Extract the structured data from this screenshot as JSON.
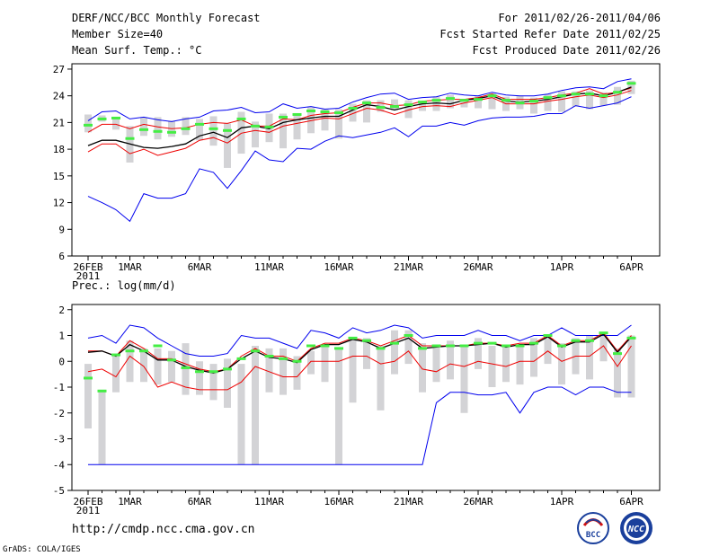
{
  "header": {
    "title": "DERF/NCC/BCC Monthly Forecast",
    "member_size": "Member Size=40",
    "variable": "Mean Surf. Temp.: °C",
    "period": "For 2011/02/26-2011/04/06",
    "started": "Fcst Started Refer Date 2011/02/25",
    "produced": "Fcst Produced Date 2011/02/26"
  },
  "footer": {
    "url": "http://cmdp.ncc.cma.gov.cn",
    "grads": "GrADS: COLA/IGES",
    "logo_bcc": "BCC",
    "logo_ncc": "NCC"
  },
  "colors": {
    "bar": "#d3d3d6",
    "median": "#44ee44",
    "max": "#0000ee",
    "upper": "#ee0000",
    "mean": "#000000"
  },
  "chart_data": [
    {
      "type": "line",
      "title": "Mean Surf. Temp.: °C",
      "x_labels": [
        "26FEB",
        "1MAR",
        "6MAR",
        "11MAR",
        "16MAR",
        "21MAR",
        "26MAR",
        "1APR",
        "6APR"
      ],
      "x_label_days": [
        1,
        4,
        9,
        14,
        19,
        24,
        29,
        35,
        40
      ],
      "x_year": "2011",
      "yticks": [
        6,
        9,
        12,
        15,
        18,
        21,
        24,
        27
      ],
      "ylim": [
        6,
        27.6
      ],
      "series": [
        {
          "name": "ensemble max",
          "color": "#0000ee",
          "values": [
            21.2,
            22.2,
            22.3,
            21.4,
            21.6,
            21.3,
            21.1,
            21.4,
            21.6,
            22.3,
            22.4,
            22.7,
            22.1,
            22.2,
            23.1,
            22.6,
            22.8,
            22.5,
            22.6,
            23.3,
            23.8,
            24.2,
            24.3,
            23.6,
            23.8,
            23.9,
            24.3,
            24.1,
            24.0,
            24.4,
            24.1,
            24.0,
            24.0,
            24.2,
            24.6,
            24.9,
            25.0,
            24.8,
            25.6,
            25.9
          ]
        },
        {
          "name": "upper bound",
          "color": "#ee0000",
          "values": [
            19.9,
            20.8,
            20.8,
            20.3,
            20.8,
            20.5,
            20.3,
            20.4,
            20.8,
            21.0,
            20.9,
            21.3,
            20.6,
            20.6,
            21.4,
            21.3,
            21.8,
            22.0,
            22.1,
            22.7,
            23.2,
            23.2,
            22.9,
            23.0,
            23.4,
            23.5,
            23.6,
            23.6,
            23.8,
            24.2,
            23.6,
            23.6,
            23.6,
            23.8,
            24.1,
            24.3,
            24.8,
            24.2,
            24.4,
            24.9
          ]
        },
        {
          "name": "ensemble mean",
          "color": "#000000",
          "values": [
            18.4,
            19.0,
            19.0,
            18.6,
            18.2,
            18.1,
            18.3,
            18.6,
            19.5,
            19.9,
            19.3,
            20.4,
            20.6,
            20.3,
            21.0,
            21.3,
            21.5,
            21.7,
            21.7,
            22.4,
            23.0,
            22.8,
            22.4,
            22.8,
            23.1,
            23.2,
            23.1,
            23.5,
            23.7,
            24.0,
            23.4,
            23.3,
            23.4,
            23.6,
            23.9,
            24.2,
            24.3,
            24.0,
            24.4,
            25.0
          ]
        },
        {
          "name": "lower bound",
          "color": "#ee0000",
          "values": [
            17.7,
            18.6,
            18.6,
            17.5,
            18.0,
            17.3,
            17.7,
            18.1,
            19.0,
            19.3,
            18.7,
            19.8,
            20.1,
            19.9,
            20.6,
            20.9,
            21.2,
            21.5,
            21.4,
            22.0,
            22.6,
            22.4,
            21.9,
            22.4,
            22.8,
            22.9,
            22.8,
            23.2,
            23.5,
            23.8,
            23.1,
            23.1,
            23.1,
            23.4,
            23.6,
            23.9,
            24.1,
            23.8,
            24.1,
            24.6
          ]
        },
        {
          "name": "ensemble min",
          "color": "#0000ee",
          "values": [
            12.7,
            12.0,
            11.2,
            9.9,
            13.0,
            12.5,
            12.5,
            13.0,
            15.8,
            15.4,
            13.6,
            15.6,
            17.8,
            16.8,
            16.6,
            18.1,
            18.0,
            18.9,
            19.5,
            19.3,
            19.6,
            19.9,
            20.4,
            19.4,
            20.6,
            20.6,
            21.0,
            20.7,
            21.2,
            21.5,
            21.6,
            21.6,
            21.7,
            22.0,
            22.0,
            22.9,
            22.6,
            22.9,
            23.2,
            23.9
          ]
        }
      ],
      "bars": [
        [
          19.9,
          21.9
        ],
        [
          21.1,
          21.8
        ],
        [
          20.2,
          21.6
        ],
        [
          16.5,
          20.6
        ],
        [
          19.5,
          21.6
        ],
        [
          19.1,
          21.6
        ],
        [
          19.4,
          21.2
        ],
        [
          19.6,
          21.6
        ],
        [
          19.0,
          21.4
        ],
        [
          18.4,
          21.7
        ],
        [
          15.9,
          20.9
        ],
        [
          17.5,
          22.2
        ],
        [
          18.2,
          21.1
        ],
        [
          18.8,
          22.0
        ],
        [
          18.1,
          22.0
        ],
        [
          19.1,
          21.8
        ],
        [
          19.8,
          22.7
        ],
        [
          20.1,
          22.5
        ],
        [
          19.2,
          22.5
        ],
        [
          21.1,
          23.1
        ],
        [
          21.0,
          23.5
        ],
        [
          22.2,
          23.5
        ],
        [
          22.4,
          23.6
        ],
        [
          21.5,
          23.5
        ],
        [
          22.3,
          23.4
        ],
        [
          22.3,
          23.9
        ],
        [
          22.6,
          24.1
        ],
        [
          22.7,
          23.5
        ],
        [
          22.6,
          24.0
        ],
        [
          22.5,
          24.3
        ],
        [
          22.3,
          23.9
        ],
        [
          22.5,
          24.0
        ],
        [
          22.0,
          23.8
        ],
        [
          22.3,
          24.2
        ],
        [
          22.2,
          24.5
        ],
        [
          22.8,
          24.5
        ],
        [
          22.5,
          24.6
        ],
        [
          22.9,
          24.4
        ],
        [
          23.0,
          25.0
        ],
        [
          24.2,
          25.7
        ]
      ],
      "markers": [
        20.7,
        21.4,
        21.5,
        19.2,
        20.2,
        20.0,
        19.9,
        20.3,
        20.8,
        20.3,
        20.1,
        21.4,
        20.6,
        20.5,
        21.6,
        21.9,
        22.3,
        22.2,
        22.1,
        22.6,
        23.2,
        22.7,
        22.8,
        23.0,
        23.3,
        23.5,
        23.7,
        23.5,
        23.6,
        24.0,
        23.5,
        23.2,
        23.4,
        23.8,
        24.0,
        24.2,
        24.2,
        24.0,
        24.4,
        25.4
      ]
    },
    {
      "type": "line",
      "title": "Prec.: log(mm/d)",
      "x_labels": [
        "26FEB",
        "1MAR",
        "6MAR",
        "11MAR",
        "16MAR",
        "21MAR",
        "26MAR",
        "1APR",
        "6APR"
      ],
      "x_label_days": [
        1,
        4,
        9,
        14,
        19,
        24,
        29,
        35,
        40
      ],
      "x_year": "2011",
      "yticks": [
        -5,
        -4,
        -3,
        -2,
        -1,
        0,
        1,
        2
      ],
      "ylim": [
        -5,
        2.2
      ],
      "series": [
        {
          "name": "ensemble max",
          "color": "#0000ee",
          "values": [
            0.9,
            1.0,
            0.7,
            1.4,
            1.3,
            0.9,
            0.6,
            0.3,
            0.2,
            0.2,
            0.3,
            1.0,
            0.9,
            0.9,
            0.7,
            0.5,
            1.2,
            1.1,
            0.9,
            1.3,
            1.1,
            1.2,
            1.4,
            1.3,
            0.9,
            1.0,
            1.0,
            1.0,
            1.2,
            1.0,
            1.0,
            0.8,
            1.0,
            1.0,
            1.3,
            1.0,
            1.0,
            1.0,
            1.0,
            1.4
          ]
        },
        {
          "name": "upper bound",
          "color": "#ee0000",
          "values": [
            0.4,
            0.4,
            0.2,
            0.8,
            0.5,
            0.1,
            0.1,
            -0.1,
            -0.3,
            -0.4,
            -0.3,
            0.2,
            0.5,
            0.2,
            0.2,
            0.0,
            0.5,
            0.7,
            0.7,
            0.9,
            0.8,
            0.6,
            0.8,
            1.0,
            0.6,
            0.6,
            0.6,
            0.6,
            0.7,
            0.7,
            0.6,
            0.7,
            0.7,
            1.0,
            0.6,
            0.8,
            0.8,
            1.1,
            0.4,
            1.0
          ]
        },
        {
          "name": "ensemble mean",
          "color": "#000000",
          "values": [
            0.35,
            0.4,
            0.2,
            0.65,
            0.4,
            0.05,
            0.05,
            -0.2,
            -0.35,
            -0.45,
            -0.3,
            0.1,
            0.4,
            0.15,
            0.1,
            -0.05,
            0.45,
            0.65,
            0.65,
            0.85,
            0.75,
            0.5,
            0.7,
            0.9,
            0.5,
            0.55,
            0.6,
            0.6,
            0.65,
            0.7,
            0.55,
            0.65,
            0.65,
            0.95,
            0.55,
            0.75,
            0.75,
            1.05,
            0.35,
            0.95
          ]
        },
        {
          "name": "lower bound",
          "color": "#ee0000",
          "values": [
            -0.4,
            -0.3,
            -0.6,
            0.2,
            -0.2,
            -1.0,
            -0.8,
            -1.0,
            -1.1,
            -1.1,
            -1.1,
            -0.8,
            -0.2,
            -0.4,
            -0.6,
            -0.6,
            0.0,
            0.0,
            0.0,
            0.2,
            0.2,
            -0.1,
            0.0,
            0.4,
            -0.3,
            -0.4,
            -0.1,
            -0.2,
            0.0,
            -0.1,
            -0.2,
            0.0,
            0.0,
            0.4,
            0.0,
            0.2,
            0.2,
            0.6,
            -0.2,
            0.6
          ]
        },
        {
          "name": "ensemble min",
          "color": "#0000ee",
          "values": [
            -4,
            -4,
            -4,
            -4,
            -4,
            -4,
            -4,
            -4,
            -4,
            -4,
            -4,
            -4,
            -4,
            -4,
            -4,
            -4,
            -4,
            -4,
            -4,
            -4,
            -4,
            -4,
            -4,
            -4,
            -4,
            -1.6,
            -1.2,
            -1.2,
            -1.3,
            -1.3,
            -1.2,
            -2.0,
            -1.2,
            -1.0,
            -1.0,
            -1.3,
            -1.0,
            -1.0,
            -1.2,
            -1.2
          ]
        }
      ],
      "bars": [
        [
          -2.6,
          -0.1
        ],
        [
          -4.0,
          -1.1
        ],
        [
          -1.2,
          0.2
        ],
        [
          -0.8,
          0.8
        ],
        [
          -0.8,
          0.5
        ],
        [
          -0.9,
          0.5
        ],
        [
          -0.8,
          0.4
        ],
        [
          -1.3,
          0.7
        ],
        [
          -1.3,
          0.0
        ],
        [
          -1.5,
          -0.1
        ],
        [
          -1.8,
          0.1
        ],
        [
          -4.0,
          -0.1
        ],
        [
          -4.0,
          0.6
        ],
        [
          -1.2,
          0.5
        ],
        [
          -1.3,
          0.5
        ],
        [
          -1.1,
          0.2
        ],
        [
          -0.5,
          0.4
        ],
        [
          -0.8,
          0.6
        ],
        [
          -4.0,
          0.5
        ],
        [
          -1.6,
          0.9
        ],
        [
          -0.3,
          0.9
        ],
        [
          -1.9,
          0.6
        ],
        [
          -0.5,
          1.2
        ],
        [
          -0.1,
          1.2
        ],
        [
          -1.2,
          0.7
        ],
        [
          -0.8,
          0.6
        ],
        [
          -0.7,
          0.8
        ],
        [
          -2.0,
          0.6
        ],
        [
          -0.3,
          0.9
        ],
        [
          -1.0,
          0.6
        ],
        [
          -0.8,
          0.6
        ],
        [
          -0.9,
          0.6
        ],
        [
          -0.6,
          0.9
        ],
        [
          -0.1,
          0.9
        ],
        [
          -0.9,
          0.7
        ],
        [
          -0.5,
          0.9
        ],
        [
          -0.7,
          1.0
        ],
        [
          0.0,
          1.1
        ],
        [
          -1.4,
          0.5
        ],
        [
          -1.4,
          1.0
        ]
      ],
      "markers": [
        -0.65,
        -1.15,
        0.25,
        0.4,
        0.4,
        0.6,
        0.05,
        -0.25,
        -0.4,
        -0.4,
        -0.3,
        0.1,
        0.4,
        0.2,
        0.1,
        0.0,
        0.6,
        0.6,
        0.5,
        0.9,
        0.8,
        0.5,
        0.7,
        1.0,
        0.5,
        0.6,
        0.6,
        0.6,
        0.7,
        0.7,
        0.6,
        0.6,
        0.7,
        1.0,
        0.6,
        0.8,
        0.8,
        1.1,
        0.3,
        0.9
      ]
    }
  ]
}
